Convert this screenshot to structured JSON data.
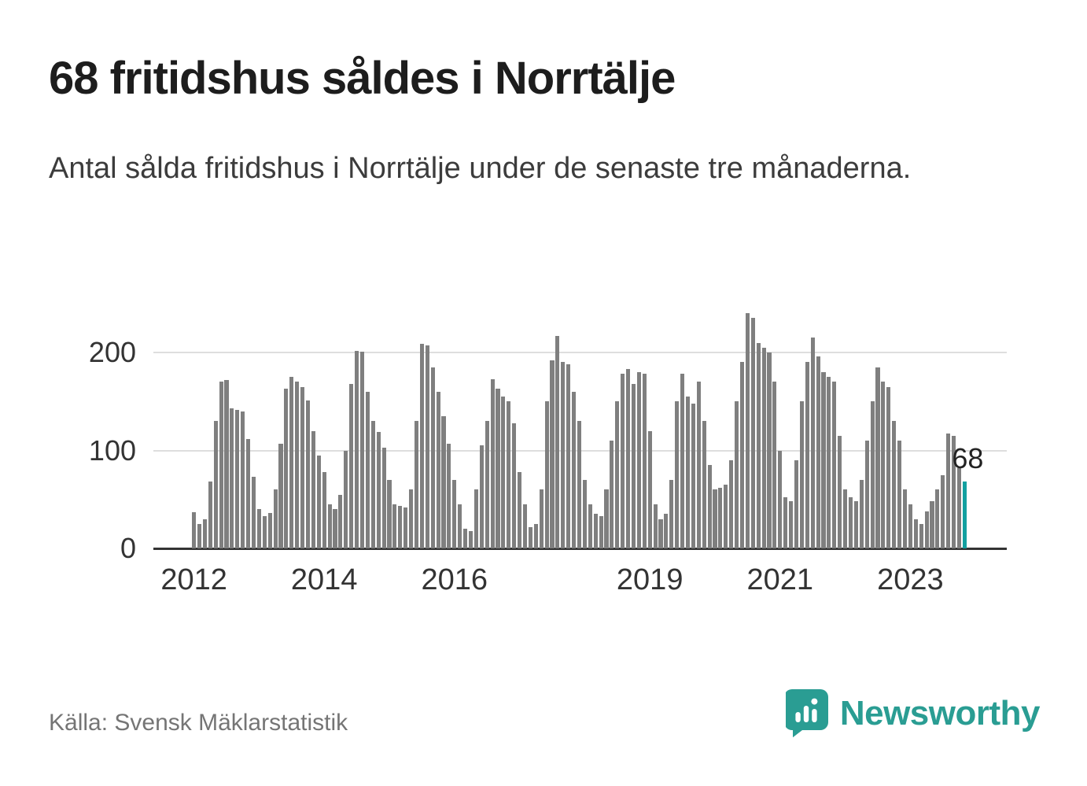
{
  "header": {
    "title": "68 fritidshus såldes i Norrtälje",
    "subtitle": "Antal sålda fritidshus i Norrtälje under de senaste tre månaderna."
  },
  "footer": {
    "source": "Källa: Svensk Mäklarstatistik"
  },
  "brand": {
    "name": "Newsworthy",
    "color": "#2a9d93"
  },
  "chart_data": {
    "type": "bar",
    "title": "68 fritidshus såldes i Norrtälje",
    "subtitle": "Antal sålda fritidshus i Norrtälje under de senaste tre månaderna.",
    "xlabel": "",
    "ylabel": "",
    "start_year": 2012,
    "frequency": "monthly",
    "ylim": [
      0,
      250
    ],
    "yticks": [
      0,
      100,
      200
    ],
    "xticks": [
      2012,
      2014,
      2016,
      2019,
      2021,
      2023
    ],
    "grid": "horizontal",
    "legend": "none",
    "bar_color": "#7f7f7f",
    "highlight_color": "#12a0a0",
    "highlight_last": true,
    "highlight_value_label": "68",
    "values": [
      37,
      25,
      30,
      68,
      130,
      170,
      172,
      143,
      141,
      140,
      112,
      73,
      40,
      33,
      36,
      60,
      107,
      163,
      175,
      170,
      165,
      151,
      120,
      95,
      78,
      45,
      40,
      55,
      100,
      168,
      202,
      201,
      160,
      130,
      119,
      103,
      70,
      45,
      43,
      42,
      60,
      130,
      209,
      207,
      185,
      160,
      135,
      107,
      70,
      45,
      20,
      18,
      60,
      105,
      130,
      173,
      163,
      155,
      150,
      128,
      78,
      45,
      22,
      25,
      60,
      150,
      192,
      217,
      190,
      188,
      160,
      130,
      70,
      45,
      35,
      33,
      60,
      110,
      150,
      178,
      183,
      168,
      180,
      178,
      120,
      45,
      30,
      35,
      70,
      150,
      178,
      155,
      148,
      170,
      130,
      85,
      60,
      62,
      65,
      90,
      150,
      190,
      240,
      235,
      210,
      205,
      200,
      170,
      100,
      52,
      48,
      90,
      150,
      190,
      215,
      196,
      180,
      175,
      170,
      115,
      60,
      52,
      48,
      70,
      110,
      150,
      185,
      170,
      165,
      130,
      110,
      60,
      45,
      30,
      25,
      38,
      48,
      60,
      75,
      117,
      115,
      82,
      68
    ]
  }
}
